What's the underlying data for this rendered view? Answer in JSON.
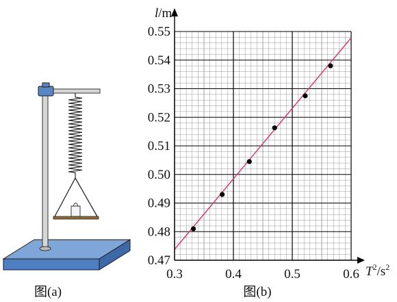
{
  "figure_a": {
    "caption": "图(a)"
  },
  "figure_b": {
    "caption": "图(b)"
  },
  "chart_data": {
    "type": "scatter",
    "x_axis_var": "T",
    "x_axis_sup": "2",
    "x_axis_rest": "/s",
    "x_axis_sup2": "2",
    "y_axis_var": "l",
    "y_axis_rest": "/m",
    "xlim": [
      0.3,
      0.6
    ],
    "ylim": [
      0.47,
      0.55
    ],
    "x_ticks": [
      "0.3",
      "0.4",
      "0.5",
      "0.6"
    ],
    "y_ticks": [
      "0.47",
      "0.48",
      "0.49",
      "0.50",
      "0.51",
      "0.52",
      "0.53",
      "0.54",
      "0.55"
    ],
    "points": [
      {
        "x": 0.332,
        "y": 0.481
      },
      {
        "x": 0.381,
        "y": 0.493
      },
      {
        "x": 0.427,
        "y": 0.5045
      },
      {
        "x": 0.47,
        "y": 0.5163
      },
      {
        "x": 0.522,
        "y": 0.5275
      },
      {
        "x": 0.565,
        "y": 0.538
      }
    ],
    "fit_line": {
      "x": [
        0.3,
        0.6
      ],
      "y": [
        0.4738,
        0.5478
      ]
    },
    "grid": true,
    "colors": {
      "fit_line": "#d6336c",
      "points": "#000000",
      "grid_minor": "#8a8a8a",
      "grid_major": "#000000",
      "stand_base": "#4f7fc0"
    }
  }
}
